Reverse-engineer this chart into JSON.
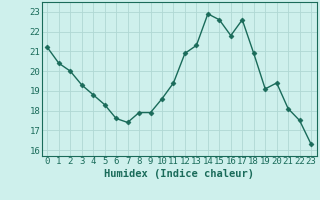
{
  "x": [
    0,
    1,
    2,
    3,
    4,
    5,
    6,
    7,
    8,
    9,
    10,
    11,
    12,
    13,
    14,
    15,
    16,
    17,
    18,
    19,
    20,
    21,
    22,
    23
  ],
  "y": [
    21.2,
    20.4,
    20.0,
    19.3,
    18.8,
    18.3,
    17.6,
    17.4,
    17.9,
    17.9,
    18.6,
    19.4,
    20.9,
    21.3,
    22.9,
    22.6,
    21.8,
    22.6,
    20.9,
    19.1,
    19.4,
    18.1,
    17.5,
    16.3
  ],
  "line_color": "#1a6b5a",
  "marker": "D",
  "marker_size": 2.5,
  "bg_color": "#cef0ec",
  "grid_color": "#b0d8d4",
  "xlabel": "Humidex (Indice chaleur)",
  "xlim": [
    -0.5,
    23.5
  ],
  "ylim": [
    15.7,
    23.5
  ],
  "yticks": [
    16,
    17,
    18,
    19,
    20,
    21,
    22,
    23
  ],
  "xticks": [
    0,
    1,
    2,
    3,
    4,
    5,
    6,
    7,
    8,
    9,
    10,
    11,
    12,
    13,
    14,
    15,
    16,
    17,
    18,
    19,
    20,
    21,
    22,
    23
  ],
  "xlabel_fontsize": 7.5,
  "tick_fontsize": 6.5
}
